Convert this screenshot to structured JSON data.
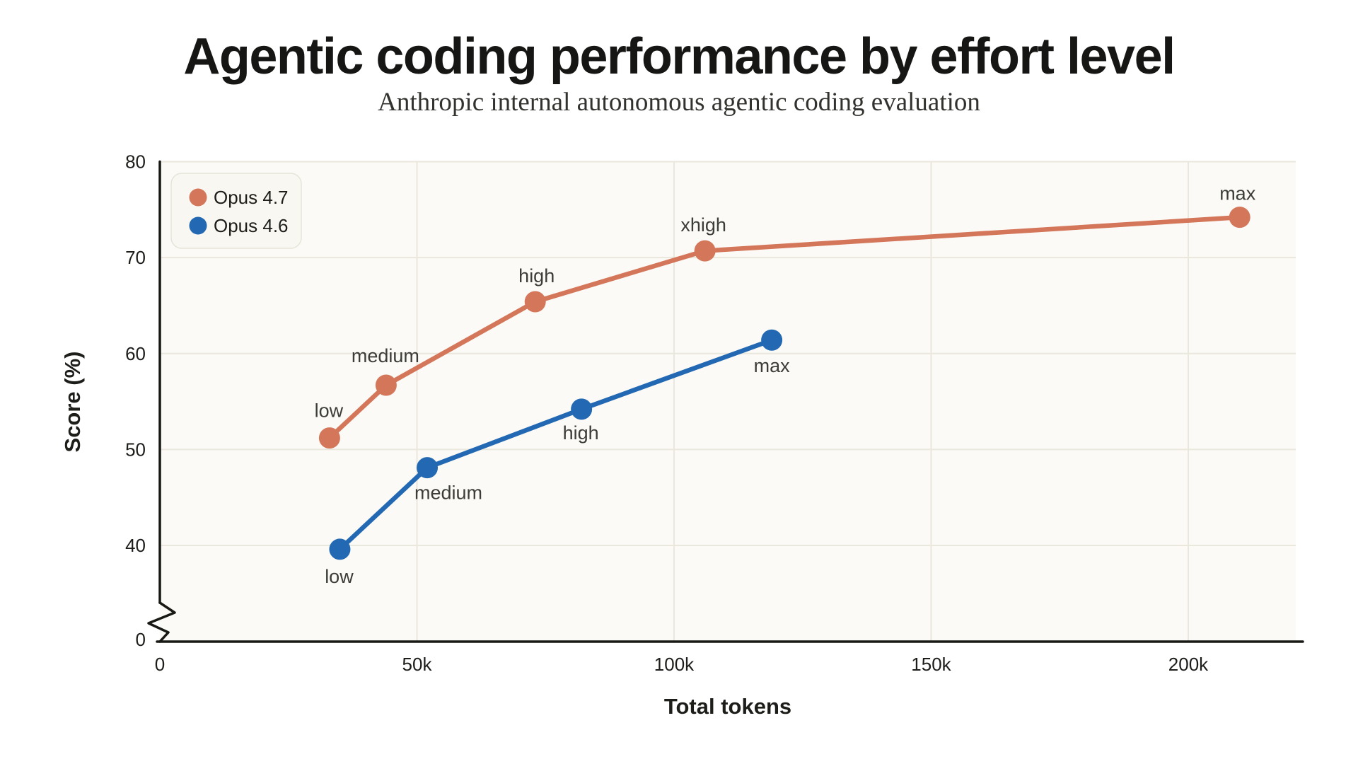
{
  "page": {
    "background": "#ffffff"
  },
  "chart_data": {
    "type": "line",
    "title": "Agentic coding performance by effort level",
    "subtitle": "Anthropic internal autonomous agentic coding evaluation",
    "xlabel": "Total tokens",
    "ylabel": "Score (%)",
    "grid": true,
    "legend_position": "top-left",
    "y_axis_break": true,
    "xlim": [
      0,
      220500
    ],
    "ylim": [
      40,
      80
    ],
    "x_ticks": [
      {
        "value": 0,
        "label": "0"
      },
      {
        "value": 50000,
        "label": "50k"
      },
      {
        "value": 100000,
        "label": "100k"
      },
      {
        "value": 150000,
        "label": "150k"
      },
      {
        "value": 200000,
        "label": "200k"
      }
    ],
    "y_ticks": [
      {
        "value": 40,
        "label": "40"
      },
      {
        "value": 50,
        "label": "50"
      },
      {
        "value": 60,
        "label": "60"
      },
      {
        "value": 70,
        "label": "70"
      },
      {
        "value": 80,
        "label": "80"
      }
    ],
    "y_origin_label": "0",
    "colors": {
      "plot_background": "#fbfaf6",
      "gridline": "#eae7dc",
      "axis": "#181815",
      "tick_text": "#1d1d1a",
      "point_label_text": "#3c3c38",
      "legend_background": "#f8f7f1",
      "legend_border": "#e6e3d9",
      "title_text": "#161614",
      "subtitle_text": "#32322e"
    },
    "series": [
      {
        "name": "Opus 4.7",
        "color": "#d4765a",
        "points": [
          {
            "x": 33000,
            "y": 51.2,
            "label": "low",
            "label_dx": -1,
            "label_dy": -39
          },
          {
            "x": 44000,
            "y": 56.7,
            "label": "medium",
            "label_dx": -1,
            "label_dy": -42
          },
          {
            "x": 73000,
            "y": 65.4,
            "label": "high",
            "label_dx": 2,
            "label_dy": -37
          },
          {
            "x": 106000,
            "y": 70.7,
            "label": "xhigh",
            "label_dx": -2,
            "label_dy": -37
          },
          {
            "x": 210000,
            "y": 74.2,
            "label": "max",
            "label_dx": -3,
            "label_dy": -34
          }
        ]
      },
      {
        "name": "Opus 4.6",
        "color": "#2268b2",
        "points": [
          {
            "x": 35000,
            "y": 39.6,
            "label": "low",
            "label_dx": -1,
            "label_dy": 38
          },
          {
            "x": 52000,
            "y": 48.1,
            "label": "medium",
            "label_dx": 30,
            "label_dy": 35
          },
          {
            "x": 82000,
            "y": 54.2,
            "label": "high",
            "label_dx": -1,
            "label_dy": 33
          },
          {
            "x": 119000,
            "y": 61.4,
            "label": "max",
            "label_dx": 0,
            "label_dy": 36
          }
        ]
      }
    ]
  }
}
